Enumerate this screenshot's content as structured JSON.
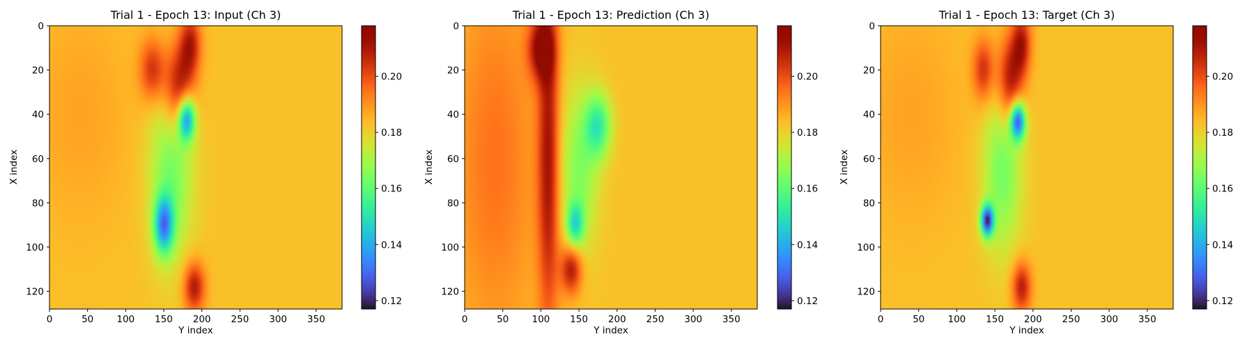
{
  "chart_data": [
    {
      "type": "heatmap",
      "title": "Trial 1 - Epoch 13: Input (Ch 3)",
      "xlabel": "Y index",
      "ylabel": "X index",
      "xlim": [
        0,
        384
      ],
      "ylim": [
        128,
        0
      ],
      "xticks": [
        "0",
        "50",
        "100",
        "150",
        "200",
        "250",
        "300",
        "350"
      ],
      "yticks": [
        "0",
        "20",
        "40",
        "60",
        "80",
        "100",
        "120"
      ],
      "colormap": "turbo",
      "colorbar": {
        "range": [
          0.117,
          0.218
        ],
        "ticks": [
          "0.12",
          "0.14",
          "0.16",
          "0.18",
          "0.20"
        ]
      },
      "background_value": 0.183,
      "features": [
        {
          "x": 170,
          "y": 28,
          "sx": 14,
          "sy": 14,
          "v": 0.213
        },
        {
          "x": 135,
          "y": 20,
          "sx": 12,
          "sy": 10,
          "v": 0.205
        },
        {
          "x": 185,
          "y": 8,
          "sx": 10,
          "sy": 10,
          "v": 0.207
        },
        {
          "x": 190,
          "y": 118,
          "sx": 10,
          "sy": 8,
          "v": 0.21
        },
        {
          "x": 180,
          "y": 42,
          "sx": 8,
          "sy": 7,
          "v": 0.135
        },
        {
          "x": 150,
          "y": 90,
          "sx": 9,
          "sy": 9,
          "v": 0.14
        },
        {
          "x": 160,
          "y": 65,
          "sx": 20,
          "sy": 28,
          "v": 0.163
        },
        {
          "x": 40,
          "y": 40,
          "sx": 45,
          "sy": 35,
          "v": 0.188
        }
      ]
    },
    {
      "type": "heatmap",
      "title": "Trial 1 - Epoch 13: Prediction (Ch 3)",
      "xlabel": "Y index",
      "ylabel": "X index",
      "xlim": [
        0,
        384
      ],
      "ylim": [
        128,
        0
      ],
      "xticks": [
        "0",
        "50",
        "100",
        "150",
        "200",
        "250",
        "300",
        "350"
      ],
      "yticks": [
        "0",
        "20",
        "40",
        "60",
        "80",
        "100",
        "120"
      ],
      "colormap": "turbo",
      "colorbar": {
        "range": [
          0.117,
          0.218
        ],
        "ticks": [
          "0.12",
          "0.14",
          "0.16",
          "0.18",
          "0.20"
        ]
      },
      "background_value": 0.183,
      "features": [
        {
          "x": 110,
          "y": 60,
          "sx": 10,
          "sy": 55,
          "v": 0.21
        },
        {
          "x": 100,
          "y": 10,
          "sx": 12,
          "sy": 10,
          "v": 0.212
        },
        {
          "x": 140,
          "y": 110,
          "sx": 10,
          "sy": 8,
          "v": 0.211
        },
        {
          "x": 175,
          "y": 45,
          "sx": 12,
          "sy": 10,
          "v": 0.155
        },
        {
          "x": 145,
          "y": 90,
          "sx": 8,
          "sy": 7,
          "v": 0.155
        },
        {
          "x": 150,
          "y": 65,
          "sx": 18,
          "sy": 25,
          "v": 0.165
        },
        {
          "x": 40,
          "y": 60,
          "sx": 40,
          "sy": 60,
          "v": 0.195
        }
      ]
    },
    {
      "type": "heatmap",
      "title": "Trial 1 - Epoch 13: Target (Ch 3)",
      "xlabel": "Y index",
      "ylabel": "X index",
      "xlim": [
        0,
        384
      ],
      "ylim": [
        128,
        0
      ],
      "xticks": [
        "0",
        "50",
        "100",
        "150",
        "200",
        "250",
        "300",
        "350"
      ],
      "yticks": [
        "0",
        "20",
        "40",
        "60",
        "80",
        "100",
        "120"
      ],
      "colormap": "turbo",
      "colorbar": {
        "range": [
          0.117,
          0.218
        ],
        "ticks": [
          "0.12",
          "0.14",
          "0.16",
          "0.18",
          "0.20"
        ]
      },
      "background_value": 0.183,
      "features": [
        {
          "x": 170,
          "y": 25,
          "sx": 12,
          "sy": 14,
          "v": 0.212
        },
        {
          "x": 135,
          "y": 20,
          "sx": 10,
          "sy": 10,
          "v": 0.205
        },
        {
          "x": 185,
          "y": 8,
          "sx": 9,
          "sy": 10,
          "v": 0.208
        },
        {
          "x": 185,
          "y": 118,
          "sx": 9,
          "sy": 8,
          "v": 0.209
        },
        {
          "x": 180,
          "y": 43,
          "sx": 7,
          "sy": 6,
          "v": 0.128
        },
        {
          "x": 140,
          "y": 88,
          "sx": 6,
          "sy": 5,
          "v": 0.125
        },
        {
          "x": 160,
          "y": 65,
          "sx": 18,
          "sy": 26,
          "v": 0.163
        },
        {
          "x": 40,
          "y": 40,
          "sx": 45,
          "sy": 35,
          "v": 0.188
        }
      ]
    }
  ]
}
